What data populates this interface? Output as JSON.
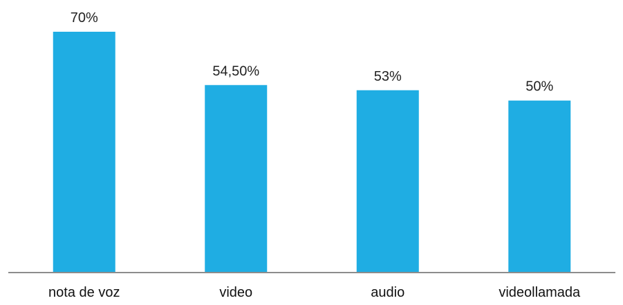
{
  "chart_data": {
    "type": "bar",
    "categories": [
      "nota de voz",
      "video",
      "audio",
      "videollamada"
    ],
    "values": [
      70,
      54.5,
      53,
      50
    ],
    "data_labels": [
      "70%",
      "54,50%",
      "53%",
      "50%"
    ],
    "title": "",
    "xlabel": "",
    "ylabel": "",
    "ylim": [
      0,
      70
    ],
    "grid": false,
    "legend": "none",
    "colors": {
      "bar": "#1fade3",
      "axis": "#8c8c8c"
    }
  }
}
